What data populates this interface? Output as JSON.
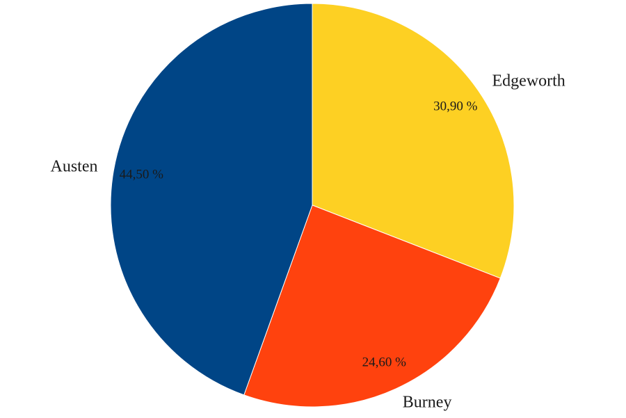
{
  "chart_data": {
    "type": "pie",
    "title": "",
    "start": "top",
    "direction": "clockwise",
    "slices": [
      {
        "label": "Edgeworth",
        "value": 30.9,
        "value_label": "30,90 %",
        "color": "#FDD023"
      },
      {
        "label": "Burney",
        "value": 24.6,
        "value_label": "24,60 %",
        "color": "#FF420E"
      },
      {
        "label": "Austen",
        "value": 44.5,
        "value_label": "44,50 %",
        "color": "#004586"
      }
    ]
  }
}
